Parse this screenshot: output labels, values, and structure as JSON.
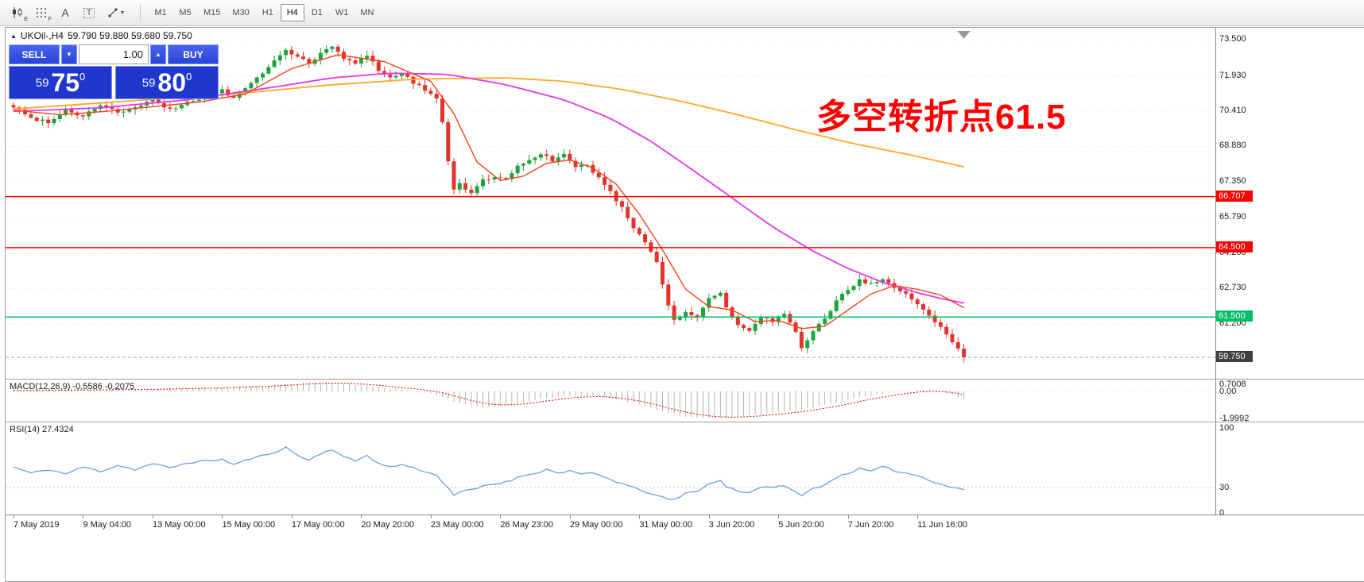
{
  "toolbar": {
    "icons": [
      "candlestick-chart",
      "grid",
      "text-a",
      "text-box",
      "shapes-dropdown"
    ],
    "icon_subs": {
      "chart": "E",
      "grid": "F"
    },
    "timeframes": [
      {
        "label": "M1",
        "active": false
      },
      {
        "label": "M5",
        "active": false
      },
      {
        "label": "M15",
        "active": false
      },
      {
        "label": "M30",
        "active": false
      },
      {
        "label": "H1",
        "active": false
      },
      {
        "label": "H4",
        "active": true
      },
      {
        "label": "D1",
        "active": false
      },
      {
        "label": "W1",
        "active": false
      },
      {
        "label": "MN",
        "active": false
      }
    ]
  },
  "symbol_header": {
    "title": "UKOil-,H4",
    "ohlc": "59.790 59.880 59.680 59.750"
  },
  "one_click": {
    "sell_label": "SELL",
    "buy_label": "BUY",
    "volume": "1.00",
    "sell_small": "59",
    "sell_big": "75",
    "sell_sup": "0",
    "buy_small": "59",
    "buy_big": "80",
    "buy_sup": "0"
  },
  "annotation": {
    "text": "多空转折点61.5",
    "color": "#ff0000"
  },
  "hlines": [
    {
      "price": 66.707,
      "label": "66.707",
      "color": "#ff0000"
    },
    {
      "price": 64.5,
      "label": "64.500",
      "color": "#ff0000"
    },
    {
      "price": 61.5,
      "label": "61.500",
      "color": "#00c06a"
    }
  ],
  "current_price": {
    "value": 59.75,
    "label": "59.750"
  },
  "axis": {
    "price_labels": [
      "73.500",
      "71.930",
      "70.410",
      "68.880",
      "67.350",
      "65.790",
      "64.260",
      "62.730",
      "61.200",
      "59.670"
    ],
    "time_labels": [
      "7 May 2019",
      "9 May 04:00",
      "13 May 00:00",
      "15 May 00:00",
      "17 May 00:00",
      "20 May 20:00",
      "23 May 00:00",
      "26 May 23:00",
      "29 May 00:00",
      "31 May 00:00",
      "3 Jun 20:00",
      "5 Jun 20:00",
      "7 Jun 20:00",
      "11 Jun 16:00"
    ]
  },
  "indicators": {
    "macd": {
      "label": "MACD(12,26,9) -0.5586 -0.2075",
      "values_right": [
        "0.7008",
        "0.00",
        "-1.9992"
      ]
    },
    "rsi": {
      "label": "RSI(14) 27.4324",
      "levels_right": [
        "100",
        "30",
        "0"
      ]
    }
  },
  "colors": {
    "candle_up": "#1fa33c",
    "candle_down": "#e3342b",
    "ma_fast": "#f4431c",
    "ma_mid": "#e536e5",
    "ma_slow": "#ffa726",
    "macd_hist": "#b5b5b5",
    "macd_signal": "#dd0000",
    "rsi_line": "#6b9fe0",
    "grid": "#e3e3e3",
    "price_tag": "#3f3f3f",
    "accent_blue": "#2b43d6",
    "annotation_red": "#ff0000"
  },
  "chart_data": {
    "type": "candlestick",
    "symbol": "UKOil-",
    "timeframe": "H4",
    "title": "UKOil- H4 with MACD(12,26,9) and RSI(14)",
    "ylim": [
      58.8,
      73.95
    ],
    "bars": 165,
    "last_close": 59.75,
    "ohlc_header": {
      "open": 59.79,
      "high": 59.88,
      "low": 59.68,
      "close": 59.75
    },
    "support_resistance": [
      66.707,
      64.5,
      61.5
    ],
    "close_anchors": [
      [
        0,
        70.6
      ],
      [
        3,
        70.1
      ],
      [
        6,
        69.95
      ],
      [
        9,
        70.45
      ],
      [
        12,
        70.2
      ],
      [
        15,
        70.7
      ],
      [
        18,
        70.35
      ],
      [
        21,
        70.55
      ],
      [
        24,
        70.9
      ],
      [
        27,
        70.45
      ],
      [
        30,
        70.8
      ],
      [
        33,
        71.0
      ],
      [
        36,
        71.3
      ],
      [
        38,
        70.95
      ],
      [
        41,
        71.6
      ],
      [
        44,
        72.3
      ],
      [
        47,
        73.1
      ],
      [
        49,
        72.75
      ],
      [
        51,
        72.45
      ],
      [
        53,
        72.9
      ],
      [
        55,
        73.2
      ],
      [
        57,
        72.7
      ],
      [
        59,
        72.45
      ],
      [
        61,
        72.85
      ],
      [
        63,
        72.2
      ],
      [
        65,
        71.85
      ],
      [
        67,
        72.05
      ],
      [
        69,
        71.65
      ],
      [
        71,
        71.35
      ],
      [
        73,
        70.95
      ],
      [
        74,
        69.9
      ],
      [
        75,
        68.3
      ],
      [
        76,
        66.95
      ],
      [
        77,
        67.25
      ],
      [
        79,
        66.85
      ],
      [
        81,
        67.4
      ],
      [
        83,
        67.6
      ],
      [
        85,
        67.45
      ],
      [
        87,
        68.0
      ],
      [
        89,
        68.3
      ],
      [
        91,
        68.6
      ],
      [
        93,
        68.25
      ],
      [
        95,
        68.5
      ],
      [
        97,
        67.95
      ],
      [
        99,
        68.1
      ],
      [
        101,
        67.5
      ],
      [
        103,
        66.9
      ],
      [
        105,
        66.2
      ],
      [
        107,
        65.4
      ],
      [
        109,
        64.75
      ],
      [
        111,
        63.9
      ],
      [
        113,
        62.0
      ],
      [
        114,
        61.35
      ],
      [
        116,
        61.7
      ],
      [
        118,
        61.45
      ],
      [
        120,
        62.3
      ],
      [
        122,
        62.6
      ],
      [
        123,
        61.85
      ],
      [
        125,
        61.15
      ],
      [
        127,
        60.85
      ],
      [
        129,
        61.5
      ],
      [
        131,
        61.3
      ],
      [
        133,
        61.6
      ],
      [
        135,
        60.8
      ],
      [
        136,
        60.15
      ],
      [
        138,
        60.9
      ],
      [
        140,
        61.4
      ],
      [
        142,
        62.2
      ],
      [
        144,
        62.7
      ],
      [
        146,
        63.1
      ],
      [
        148,
        62.9
      ],
      [
        150,
        63.15
      ],
      [
        152,
        62.7
      ],
      [
        154,
        62.45
      ],
      [
        156,
        62.1
      ],
      [
        158,
        61.6
      ],
      [
        160,
        61.05
      ],
      [
        162,
        60.45
      ],
      [
        164,
        59.75
      ]
    ],
    "ma_fast_red": [
      [
        0,
        70.45
      ],
      [
        8,
        70.25
      ],
      [
        16,
        70.4
      ],
      [
        24,
        70.6
      ],
      [
        32,
        70.8
      ],
      [
        40,
        71.15
      ],
      [
        48,
        72.25
      ],
      [
        56,
        72.85
      ],
      [
        64,
        72.55
      ],
      [
        72,
        71.7
      ],
      [
        76,
        70.3
      ],
      [
        80,
        68.2
      ],
      [
        84,
        67.4
      ],
      [
        88,
        67.6
      ],
      [
        92,
        68.15
      ],
      [
        96,
        68.3
      ],
      [
        100,
        67.95
      ],
      [
        104,
        67.25
      ],
      [
        108,
        65.95
      ],
      [
        112,
        64.4
      ],
      [
        116,
        62.7
      ],
      [
        120,
        61.95
      ],
      [
        124,
        61.8
      ],
      [
        128,
        61.3
      ],
      [
        132,
        61.35
      ],
      [
        136,
        61.0
      ],
      [
        140,
        61.1
      ],
      [
        144,
        61.8
      ],
      [
        148,
        62.5
      ],
      [
        152,
        62.85
      ],
      [
        156,
        62.7
      ],
      [
        160,
        62.45
      ],
      [
        164,
        61.9
      ]
    ],
    "ma_mid_magenta": [
      [
        0,
        70.4
      ],
      [
        15,
        70.55
      ],
      [
        30,
        70.9
      ],
      [
        45,
        71.45
      ],
      [
        55,
        71.85
      ],
      [
        65,
        72.05
      ],
      [
        75,
        72.0
      ],
      [
        85,
        71.55
      ],
      [
        95,
        70.9
      ],
      [
        103,
        70.1
      ],
      [
        110,
        69.1
      ],
      [
        117,
        67.9
      ],
      [
        124,
        66.65
      ],
      [
        131,
        65.4
      ],
      [
        138,
        64.35
      ],
      [
        144,
        63.6
      ],
      [
        150,
        63.0
      ],
      [
        156,
        62.55
      ],
      [
        160,
        62.3
      ],
      [
        164,
        62.1
      ]
    ],
    "ma_slow_orange": [
      [
        0,
        70.5
      ],
      [
        20,
        70.85
      ],
      [
        40,
        71.2
      ],
      [
        55,
        71.55
      ],
      [
        70,
        71.8
      ],
      [
        85,
        71.85
      ],
      [
        95,
        71.7
      ],
      [
        105,
        71.35
      ],
      [
        115,
        70.85
      ],
      [
        125,
        70.25
      ],
      [
        135,
        69.6
      ],
      [
        145,
        69.0
      ],
      [
        155,
        68.5
      ],
      [
        164,
        68.0
      ]
    ],
    "macd_anchors": [
      [
        0,
        0.06
      ],
      [
        8,
        0.1
      ],
      [
        16,
        0.14
      ],
      [
        24,
        0.18
      ],
      [
        32,
        0.25
      ],
      [
        40,
        0.35
      ],
      [
        46,
        0.5
      ],
      [
        50,
        0.62
      ],
      [
        54,
        0.68
      ],
      [
        58,
        0.55
      ],
      [
        62,
        0.38
      ],
      [
        66,
        0.18
      ],
      [
        70,
        0.0
      ],
      [
        73,
        -0.25
      ],
      [
        76,
        -0.75
      ],
      [
        79,
        -1.1
      ],
      [
        82,
        -1.15
      ],
      [
        85,
        -1.0
      ],
      [
        88,
        -0.8
      ],
      [
        91,
        -0.55
      ],
      [
        94,
        -0.38
      ],
      [
        97,
        -0.3
      ],
      [
        100,
        -0.35
      ],
      [
        103,
        -0.5
      ],
      [
        106,
        -0.75
      ],
      [
        109,
        -1.1
      ],
      [
        112,
        -1.5
      ],
      [
        115,
        -1.8
      ],
      [
        118,
        -1.95
      ],
      [
        121,
        -2.0
      ],
      [
        124,
        -1.92
      ],
      [
        127,
        -1.8
      ],
      [
        130,
        -1.62
      ],
      [
        133,
        -1.45
      ],
      [
        136,
        -1.35
      ],
      [
        139,
        -1.1
      ],
      [
        142,
        -0.8
      ],
      [
        145,
        -0.5
      ],
      [
        148,
        -0.28
      ],
      [
        151,
        -0.1
      ],
      [
        154,
        0.05
      ],
      [
        156,
        0.12
      ],
      [
        158,
        0.08
      ],
      [
        160,
        -0.02
      ],
      [
        162,
        -0.25
      ],
      [
        164,
        -0.5586
      ]
    ],
    "rsi_anchors": [
      [
        0,
        54
      ],
      [
        3,
        47
      ],
      [
        6,
        51
      ],
      [
        9,
        46
      ],
      [
        12,
        54
      ],
      [
        15,
        49
      ],
      [
        18,
        56
      ],
      [
        21,
        51
      ],
      [
        24,
        58
      ],
      [
        27,
        53
      ],
      [
        30,
        59
      ],
      [
        33,
        61
      ],
      [
        36,
        63
      ],
      [
        38,
        57
      ],
      [
        41,
        64
      ],
      [
        44,
        69
      ],
      [
        47,
        77
      ],
      [
        49,
        68
      ],
      [
        51,
        62
      ],
      [
        53,
        70
      ],
      [
        55,
        75
      ],
      [
        57,
        66
      ],
      [
        59,
        61
      ],
      [
        61,
        68
      ],
      [
        63,
        58
      ],
      [
        65,
        54
      ],
      [
        67,
        57
      ],
      [
        69,
        53
      ],
      [
        71,
        49
      ],
      [
        73,
        44
      ],
      [
        75,
        30
      ],
      [
        76,
        21
      ],
      [
        78,
        26
      ],
      [
        80,
        29
      ],
      [
        82,
        33
      ],
      [
        84,
        35
      ],
      [
        86,
        39
      ],
      [
        88,
        44
      ],
      [
        90,
        47
      ],
      [
        92,
        51
      ],
      [
        94,
        47
      ],
      [
        96,
        50
      ],
      [
        98,
        45
      ],
      [
        100,
        47
      ],
      [
        102,
        42
      ],
      [
        104,
        37
      ],
      [
        106,
        32
      ],
      [
        108,
        27
      ],
      [
        110,
        23
      ],
      [
        112,
        18
      ],
      [
        114,
        15
      ],
      [
        116,
        23
      ],
      [
        118,
        26
      ],
      [
        120,
        34
      ],
      [
        122,
        38
      ],
      [
        123,
        31
      ],
      [
        125,
        26
      ],
      [
        127,
        24
      ],
      [
        129,
        31
      ],
      [
        131,
        29
      ],
      [
        133,
        33
      ],
      [
        135,
        24
      ],
      [
        136,
        20
      ],
      [
        138,
        29
      ],
      [
        140,
        33
      ],
      [
        142,
        42
      ],
      [
        144,
        47
      ],
      [
        146,
        52
      ],
      [
        148,
        49
      ],
      [
        150,
        54
      ],
      [
        152,
        50
      ],
      [
        154,
        47
      ],
      [
        156,
        44
      ],
      [
        158,
        39
      ],
      [
        160,
        34
      ],
      [
        162,
        30
      ],
      [
        164,
        27.43
      ]
    ],
    "macd_final": {
      "macd": -0.5586,
      "signal": -0.2075
    },
    "rsi_final": 27.4324
  }
}
